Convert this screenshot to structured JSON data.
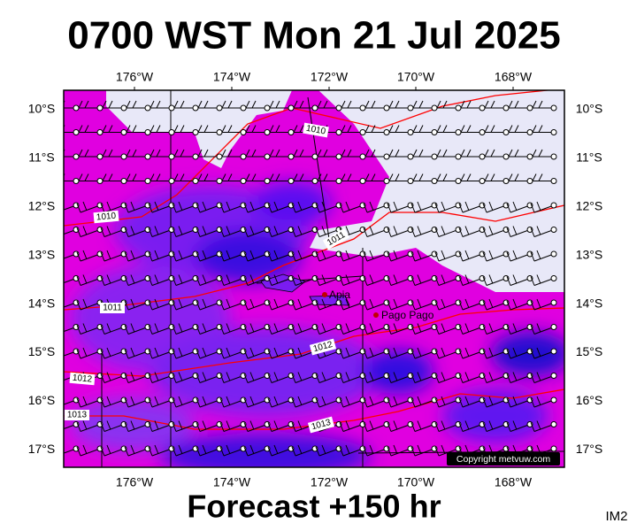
{
  "title": "0700 WST Mon 21 Jul 2025",
  "footer": "Forecast +150 hr",
  "corner_label": "IM2",
  "copyright": "Copyright metvuw.com",
  "longitude_labels": [
    "176°W",
    "174°W",
    "172°W",
    "170°W",
    "168°W"
  ],
  "latitude_labels": [
    "10°S",
    "11°S",
    "12°S",
    "13°S",
    "14°S",
    "15°S",
    "16°S",
    "17°S"
  ],
  "isobar_labels": [
    "1010",
    "1010",
    "1011",
    "1011",
    "1012",
    "1012",
    "1013",
    "1013"
  ],
  "places": [
    "Apia",
    "Pago Pago"
  ]
}
